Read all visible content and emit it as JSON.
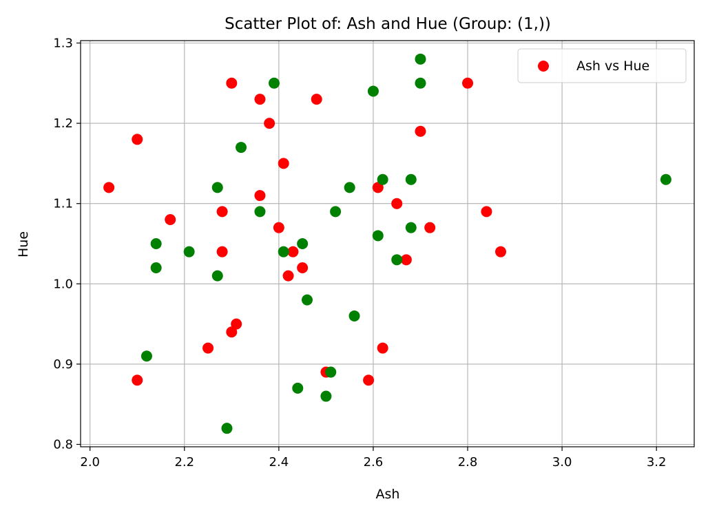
{
  "chart_data": {
    "type": "scatter",
    "title": "Scatter Plot of: Ash and Hue (Group: (1,))",
    "xlabel": "Ash",
    "ylabel": "Hue",
    "xlim": [
      1.98,
      3.28
    ],
    "ylim": [
      0.797,
      1.303
    ],
    "xticks": [
      2.0,
      2.2,
      2.4,
      2.6,
      2.8,
      3.0,
      3.2
    ],
    "yticks": [
      0.8,
      0.9,
      1.0,
      1.1,
      1.2,
      1.3
    ],
    "xtick_labels": [
      "2.0",
      "2.2",
      "2.4",
      "2.6",
      "2.8",
      "3.0",
      "3.2"
    ],
    "ytick_labels": [
      "0.8",
      "0.9",
      "1.0",
      "1.1",
      "1.2",
      "1.3"
    ],
    "grid": true,
    "legend": {
      "position": "top-right",
      "entries": [
        {
          "label": "Ash vs Hue",
          "color": "#ff0000"
        }
      ]
    },
    "series": [
      {
        "color": "#ff0000",
        "points": [
          [
            2.04,
            1.12
          ],
          [
            2.1,
            1.18
          ],
          [
            2.1,
            0.88
          ],
          [
            2.17,
            1.08
          ],
          [
            2.25,
            0.92
          ],
          [
            2.28,
            1.09
          ],
          [
            2.28,
            1.04
          ],
          [
            2.3,
            1.25
          ],
          [
            2.3,
            0.94
          ],
          [
            2.31,
            0.95
          ],
          [
            2.36,
            1.23
          ],
          [
            2.36,
            1.11
          ],
          [
            2.38,
            1.2
          ],
          [
            2.4,
            1.07
          ],
          [
            2.41,
            1.15
          ],
          [
            2.42,
            1.01
          ],
          [
            2.43,
            1.04
          ],
          [
            2.45,
            1.02
          ],
          [
            2.48,
            1.23
          ],
          [
            2.5,
            0.89
          ],
          [
            2.59,
            0.88
          ],
          [
            2.61,
            1.12
          ],
          [
            2.62,
            0.92
          ],
          [
            2.65,
            1.1
          ],
          [
            2.67,
            1.03
          ],
          [
            2.7,
            1.19
          ],
          [
            2.72,
            1.07
          ],
          [
            2.8,
            1.25
          ],
          [
            2.84,
            1.09
          ],
          [
            2.87,
            1.04
          ]
        ]
      },
      {
        "color": "#008000",
        "points": [
          [
            2.12,
            0.91
          ],
          [
            2.14,
            1.05
          ],
          [
            2.14,
            1.02
          ],
          [
            2.21,
            1.04
          ],
          [
            2.27,
            1.12
          ],
          [
            2.27,
            1.01
          ],
          [
            2.29,
            0.82
          ],
          [
            2.32,
            1.17
          ],
          [
            2.36,
            1.09
          ],
          [
            2.39,
            1.25
          ],
          [
            2.41,
            1.04
          ],
          [
            2.44,
            0.87
          ],
          [
            2.45,
            1.05
          ],
          [
            2.46,
            0.98
          ],
          [
            2.5,
            0.86
          ],
          [
            2.51,
            0.89
          ],
          [
            2.52,
            1.09
          ],
          [
            2.55,
            1.12
          ],
          [
            2.56,
            0.96
          ],
          [
            2.6,
            1.24
          ],
          [
            2.61,
            1.06
          ],
          [
            2.62,
            1.13
          ],
          [
            2.65,
            1.03
          ],
          [
            2.68,
            1.13
          ],
          [
            2.68,
            1.07
          ],
          [
            2.7,
            1.28
          ],
          [
            2.7,
            1.25
          ],
          [
            3.22,
            1.13
          ]
        ]
      }
    ]
  }
}
